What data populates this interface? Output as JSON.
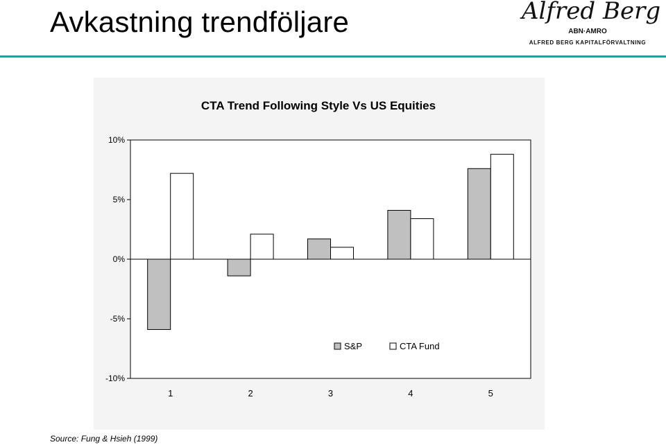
{
  "slide": {
    "title": "Avkastning trendföljare",
    "source": "Source: Fung & Hsieh (1999)"
  },
  "logo": {
    "script": "Alfred Berg",
    "sub": "ABN·AMRO",
    "line": "ALFRED BERG KAPITALFÖRVALTNING"
  },
  "colors": {
    "rule": "#2a9d98",
    "sp_fill": "#c0c0c0",
    "cta_fill": "#ffffff",
    "panel_bg": "#f4f4f4"
  },
  "chart_data": {
    "type": "bar",
    "title": "CTA Trend Following Style Vs US Equities",
    "categories": [
      "1",
      "2",
      "3",
      "4",
      "5"
    ],
    "series": [
      {
        "name": "S&P",
        "values": [
          -5.9,
          -1.4,
          1.7,
          4.1,
          7.6
        ]
      },
      {
        "name": "CTA Fund",
        "values": [
          7.2,
          2.1,
          1.0,
          3.4,
          8.8
        ]
      }
    ],
    "yticks": [
      "10%",
      "5%",
      "0%",
      "-5%",
      "-10%"
    ],
    "ylim": [
      -10,
      10
    ],
    "legend_position": "bottom-right",
    "grid": false,
    "xlabel": "",
    "ylabel": ""
  }
}
